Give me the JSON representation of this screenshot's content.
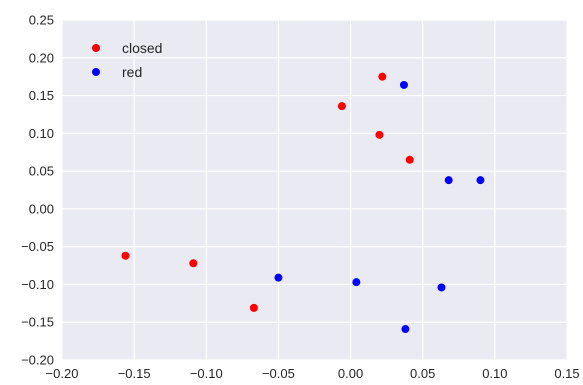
{
  "chart_data": {
    "type": "scatter",
    "title": "",
    "xlabel": "",
    "ylabel": "",
    "xlim": [
      -0.2,
      0.15
    ],
    "ylim": [
      -0.2,
      0.25
    ],
    "x_ticks": [
      -0.2,
      -0.15,
      -0.1,
      -0.05,
      0.0,
      0.05,
      0.1,
      0.15
    ],
    "x_tick_labels": [
      "−0.20",
      "−0.15",
      "−0.10",
      "−0.05",
      "0.00",
      "0.05",
      "0.10",
      "0.15"
    ],
    "y_ticks": [
      -0.2,
      -0.15,
      -0.1,
      -0.05,
      0.0,
      0.05,
      0.1,
      0.15,
      0.2,
      0.25
    ],
    "y_tick_labels": [
      "−0.20",
      "−0.15",
      "−0.10",
      "−0.05",
      "0.00",
      "0.05",
      "0.10",
      "0.15",
      "0.20",
      "0.25"
    ],
    "grid": true,
    "background_color": "#eaeaf2",
    "grid_color": "#ffffff",
    "legend_position": "top-left",
    "series": [
      {
        "name": "closed",
        "color": "#ff0000",
        "points": [
          {
            "x": 0.022,
            "y": 0.175
          },
          {
            "x": -0.006,
            "y": 0.136
          },
          {
            "x": 0.02,
            "y": 0.098
          },
          {
            "x": 0.041,
            "y": 0.065
          },
          {
            "x": -0.156,
            "y": -0.062
          },
          {
            "x": -0.109,
            "y": -0.072
          },
          {
            "x": -0.067,
            "y": -0.131
          }
        ]
      },
      {
        "name": "red",
        "color": "#0000ff",
        "points": [
          {
            "x": 0.037,
            "y": 0.164
          },
          {
            "x": 0.068,
            "y": 0.038
          },
          {
            "x": 0.09,
            "y": 0.038
          },
          {
            "x": -0.05,
            "y": -0.091
          },
          {
            "x": 0.004,
            "y": -0.097
          },
          {
            "x": 0.063,
            "y": -0.104
          },
          {
            "x": 0.038,
            "y": -0.159
          }
        ]
      }
    ]
  }
}
